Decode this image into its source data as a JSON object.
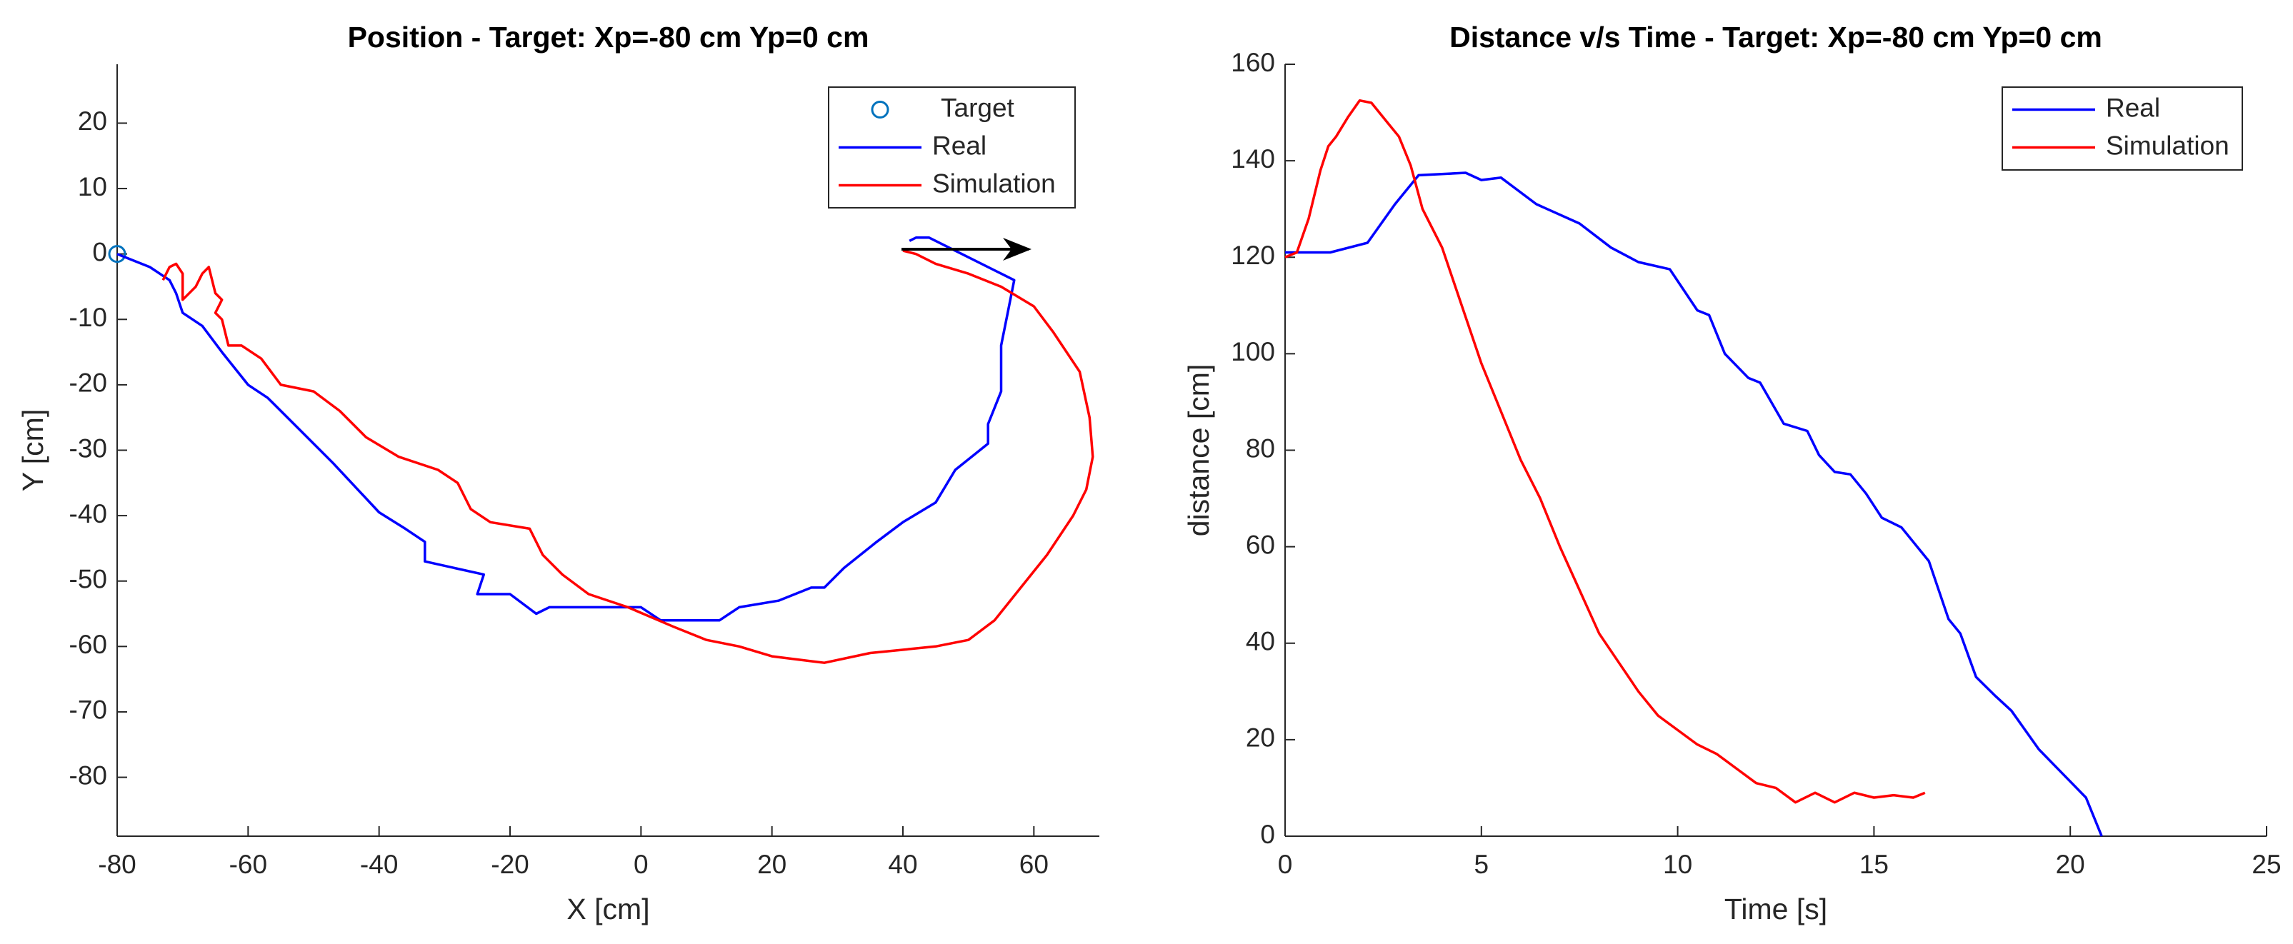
{
  "chart_data": [
    {
      "type": "line",
      "title": "Position - Target: Xp=-80 cm Yp=0 cm",
      "xlabel": "X [cm]",
      "ylabel": "Y [cm]",
      "xlim": [
        -80,
        70
      ],
      "xticks": [
        -80,
        -60,
        -40,
        -20,
        0,
        20,
        40,
        60
      ],
      "ylim": [
        -89,
        29
      ],
      "yticks": [
        -80,
        -70,
        -60,
        -50,
        -40,
        -30,
        -20,
        -10,
        0,
        10,
        20
      ],
      "legend": "northeast",
      "series": [
        {
          "name": "Target",
          "color": "#0072bd",
          "marker": "o",
          "x": [
            -80
          ],
          "values": [
            0
          ]
        },
        {
          "name": "Real",
          "color": "#0000ff",
          "x": [
            -80,
            -75,
            -72,
            -71,
            -70,
            -67,
            -64,
            -60,
            -57,
            -52,
            -47,
            -40,
            -36,
            -33,
            -33,
            -24,
            -25,
            -20,
            -16,
            -14,
            -4,
            0,
            3,
            12,
            15,
            21,
            26,
            28,
            31,
            36,
            40,
            45,
            48,
            53,
            53,
            55,
            55,
            56,
            57,
            44,
            42,
            41
          ],
          "values": [
            0,
            -2,
            -4,
            -6,
            -9,
            -11,
            -15,
            -20,
            -22,
            -27,
            -32,
            -39.5,
            -42,
            -44,
            -47,
            -49,
            -52,
            -52,
            -55,
            -54,
            -54,
            -54,
            -56,
            -56,
            -54,
            -53,
            -51,
            -51,
            -48,
            -44,
            -41,
            -38,
            -33,
            -29,
            -26,
            -21,
            -14,
            -9,
            -4,
            2.5,
            2.5,
            2
          ]
        },
        {
          "name": "Simulation",
          "color": "#ff0000",
          "x": [
            -73,
            -72,
            -71,
            -70,
            -70,
            -68,
            -67,
            -66,
            -65,
            -64,
            -65,
            -64,
            -63,
            -61,
            -58,
            -55,
            -50,
            -46,
            -42,
            -37,
            -31,
            -28,
            -26,
            -23,
            -17,
            -15,
            -12,
            -8,
            -2,
            5,
            10,
            15,
            20,
            28,
            35,
            45,
            50,
            54,
            58,
            62,
            66,
            68,
            69,
            68.5,
            67,
            63,
            60,
            55,
            50,
            45,
            42,
            40
          ],
          "values": [
            -4,
            -2,
            -1.5,
            -3,
            -7,
            -5,
            -3,
            -2,
            -6,
            -7,
            -9,
            -10,
            -14,
            -14,
            -16,
            -20,
            -21,
            -24,
            -28,
            -31,
            -33,
            -35,
            -39,
            -41,
            -42,
            -46,
            -49,
            -52,
            -54,
            -57,
            -59,
            -60,
            -61.5,
            -62.5,
            -61,
            -60,
            -59,
            -56,
            -51,
            -46,
            -40,
            -36,
            -31,
            -25,
            -18,
            -12,
            -8,
            -5,
            -3,
            -1.5,
            0,
            0.5
          ]
        }
      ]
    },
    {
      "type": "line",
      "title": "Distance v/s Time - Target: Xp=-80 cm Yp=0 cm",
      "xlabel": "Time [s]",
      "ylabel": "distance [cm]",
      "xlim": [
        0,
        25
      ],
      "xticks": [
        0,
        5,
        10,
        15,
        20,
        25
      ],
      "ylim": [
        0,
        160
      ],
      "yticks": [
        0,
        20,
        40,
        60,
        80,
        100,
        120,
        140,
        160
      ],
      "legend": "northeast",
      "series": [
        {
          "name": "Real",
          "color": "#0000ff",
          "x": [
            0,
            1.15,
            2.1,
            2.8,
            3.4,
            4.6,
            5,
            5.5,
            6.4,
            7.5,
            8.3,
            9,
            9.8,
            10.5,
            10.8,
            11.2,
            11.8,
            12.1,
            12.7,
            13.3,
            13.6,
            14,
            14.4,
            14.8,
            15.2,
            15.7,
            16.4,
            16.9,
            17.2,
            17.6,
            18.1,
            18.5,
            19.2,
            19.8,
            20.4,
            20.8
          ],
          "values": [
            121,
            121,
            123,
            131,
            137,
            137.5,
            136,
            136.5,
            131,
            127,
            122,
            119,
            117.5,
            109,
            108,
            100,
            95,
            94,
            85.5,
            84,
            79,
            75.5,
            75,
            71,
            66,
            64,
            57,
            45,
            42,
            33,
            29,
            26,
            18,
            13,
            8,
            0
          ]
        },
        {
          "name": "Simulation",
          "color": "#ff0000",
          "x": [
            0,
            0.3,
            0.6,
            0.9,
            1.1,
            1.3,
            1.6,
            1.9,
            2.2,
            2.6,
            2.9,
            3.2,
            3.5,
            4,
            4.5,
            5,
            5.5,
            6,
            6.5,
            7,
            7.5,
            8,
            8.5,
            9,
            9.5,
            10,
            10.5,
            11,
            11.5,
            12,
            12.5,
            13,
            13.5,
            14,
            14.5,
            15,
            15.5,
            16,
            16.3
          ],
          "values": [
            120,
            121,
            128,
            138,
            143,
            145,
            149,
            152.5,
            152,
            148,
            145,
            139,
            130,
            122,
            110,
            98,
            88,
            78,
            70,
            60,
            51,
            42,
            36,
            30,
            25,
            22,
            19,
            17,
            14,
            11,
            10,
            7,
            9,
            7,
            9,
            8,
            8.5,
            8,
            9
          ]
        }
      ]
    }
  ]
}
